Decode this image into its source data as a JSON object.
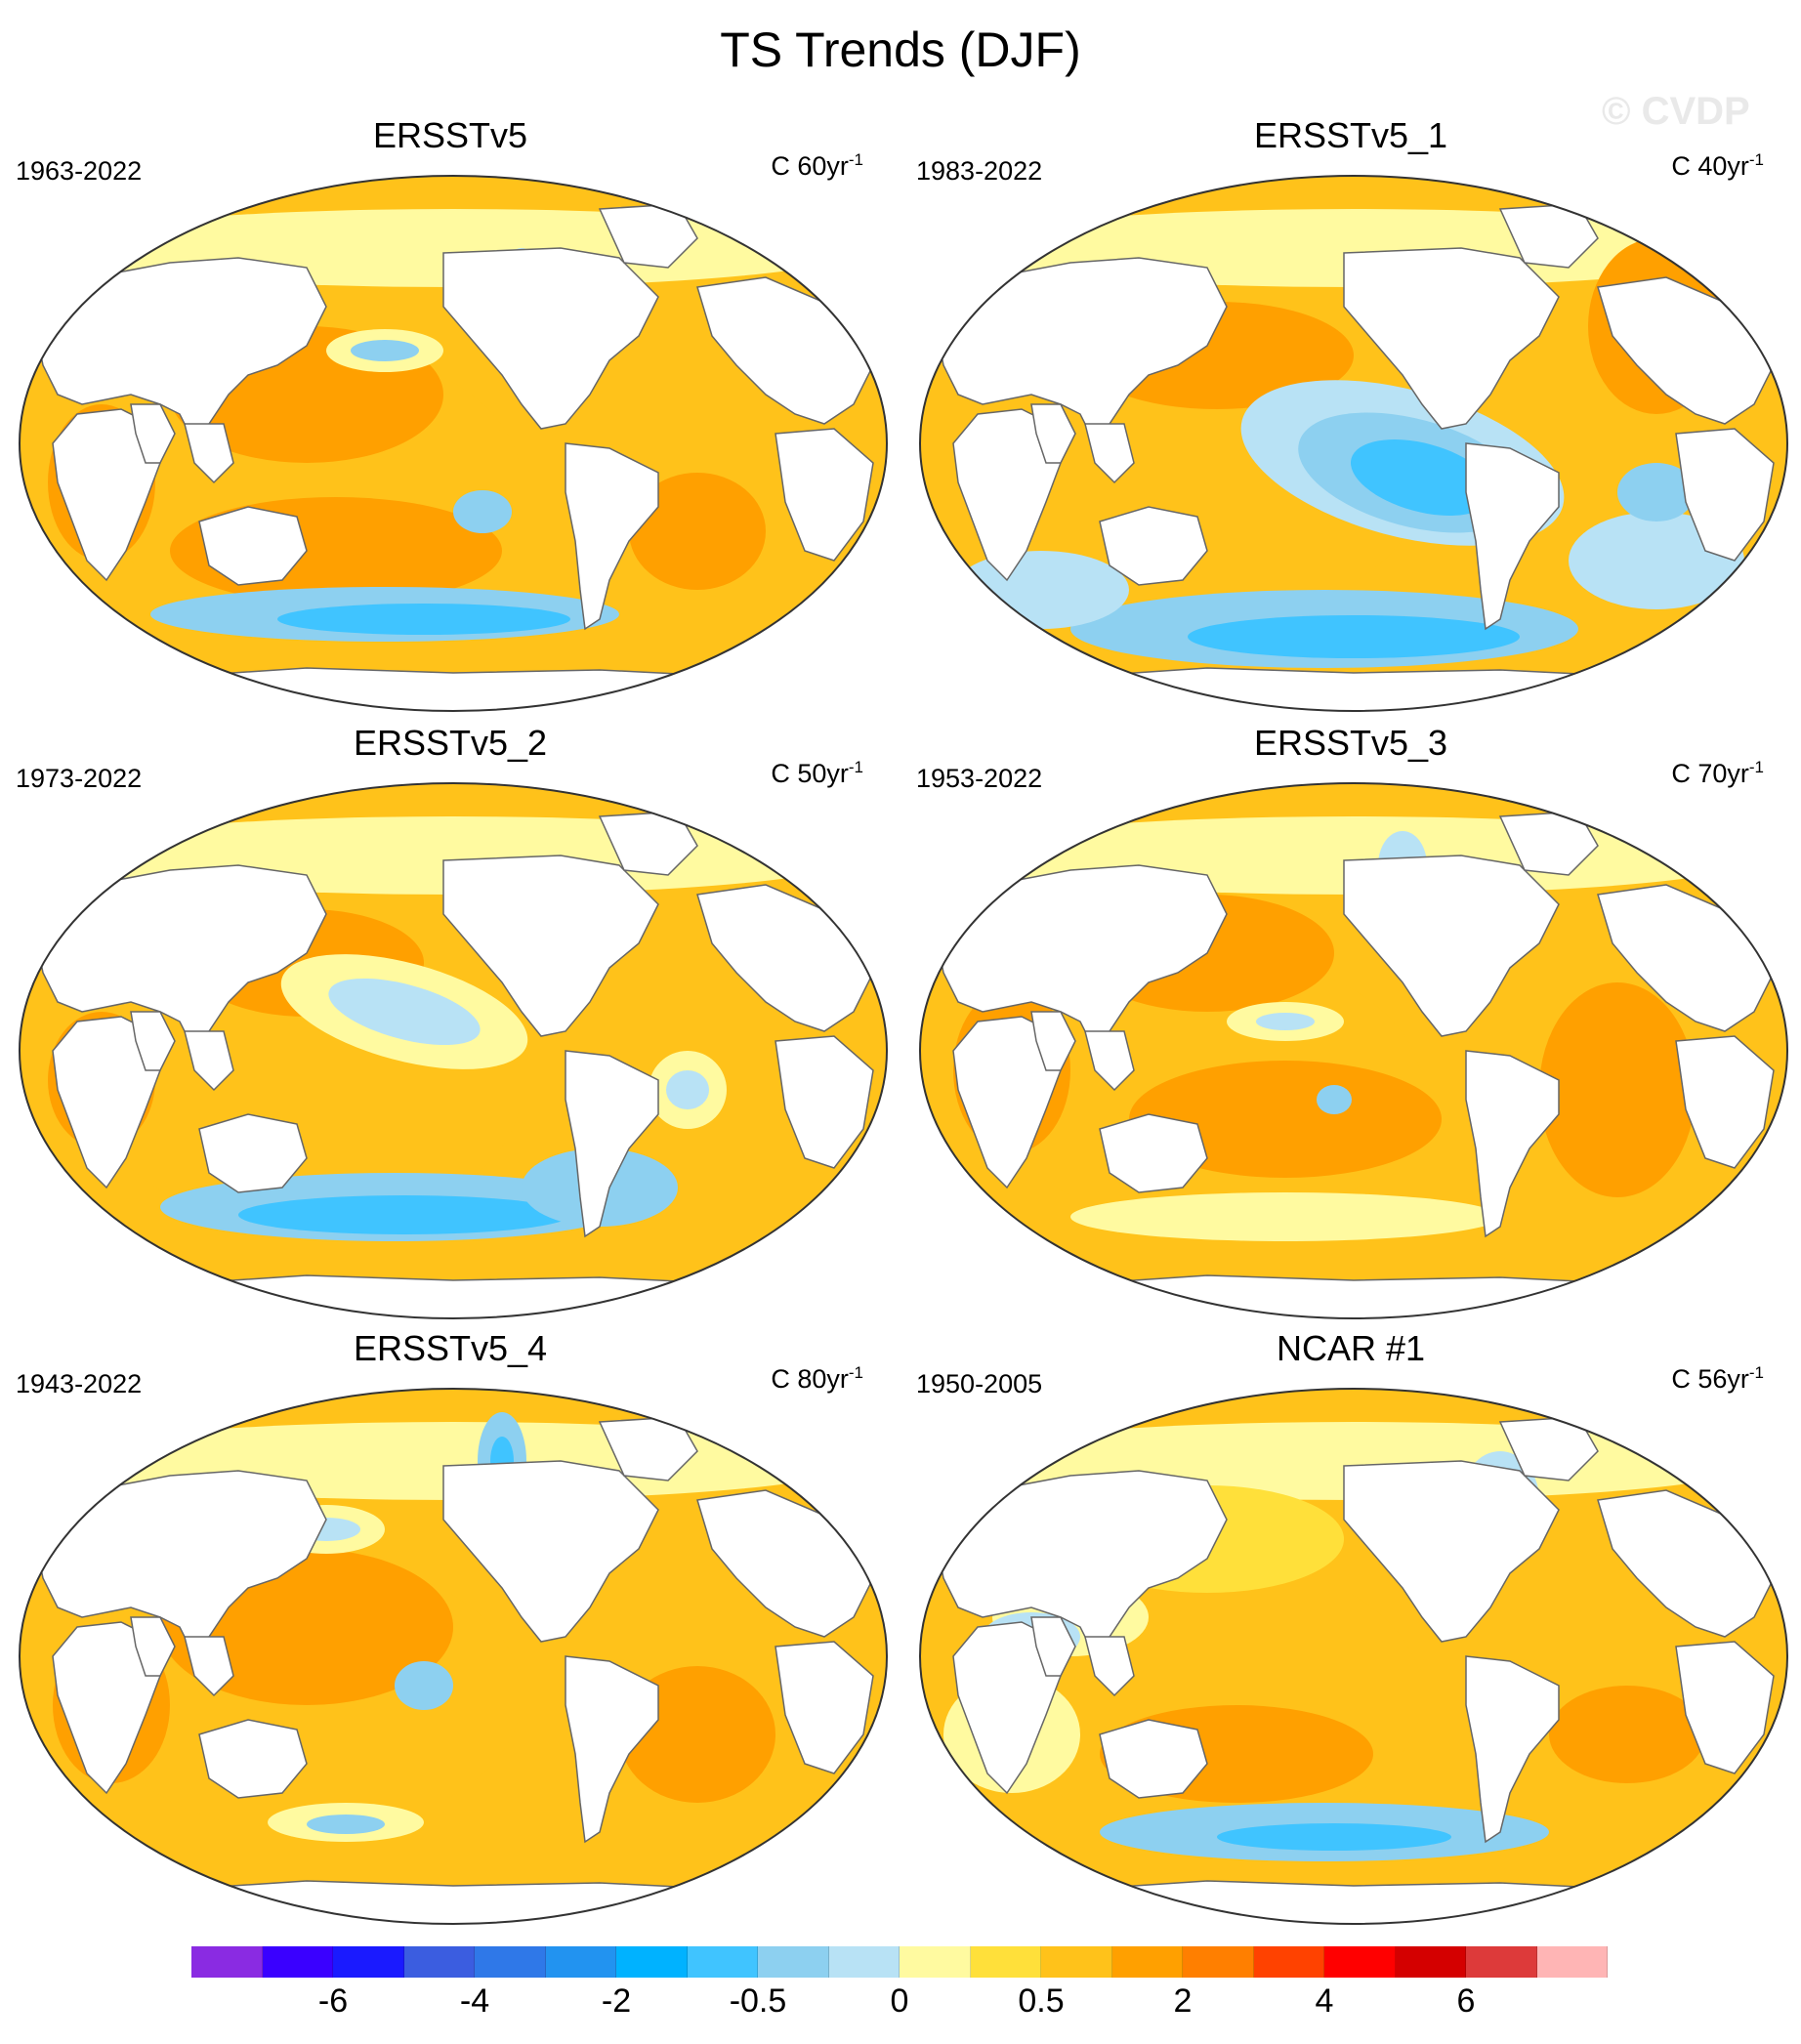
{
  "title": "TS Trends (DJF)",
  "watermark": "© CVDP",
  "panels": [
    {
      "title": "ERSSTv5",
      "period": "1963-2022",
      "units": "C 60yr",
      "units_exp": "-1",
      "pattern": "a"
    },
    {
      "title": "ERSSTv5_1",
      "period": "1983-2022",
      "units": "C 40yr",
      "units_exp": "-1",
      "pattern": "b"
    },
    {
      "title": "ERSSTv5_2",
      "period": "1973-2022",
      "units": "C 50yr",
      "units_exp": "-1",
      "pattern": "c"
    },
    {
      "title": "ERSSTv5_3",
      "period": "1953-2022",
      "units": "C 70yr",
      "units_exp": "-1",
      "pattern": "d"
    },
    {
      "title": "ERSSTv5_4",
      "period": "1943-2022",
      "units": "C 80yr",
      "units_exp": "-1",
      "pattern": "e"
    },
    {
      "title": "NCAR #1",
      "period": "1950-2005",
      "units": "C 56yr",
      "units_exp": "-1",
      "pattern": "f"
    }
  ],
  "colorbar": {
    "colors": [
      "#8a2be2",
      "#3a00ff",
      "#1a1aff",
      "#3b5de0",
      "#2f78e8",
      "#2293f0",
      "#00b2ff",
      "#40c4ff",
      "#8dd0f0",
      "#b8e2f5",
      "#fffaa0",
      "#ffe03a",
      "#ffc21a",
      "#ffa000",
      "#ff7f00",
      "#ff4200",
      "#ff0000",
      "#d40000",
      "#dd3a3a",
      "#ffb5b5"
    ],
    "labels": [
      "-6",
      "-4",
      "-2",
      "-0.5",
      "0",
      "0.5",
      "2",
      "4",
      "6"
    ],
    "label_boundaries": [
      2,
      4,
      6,
      8,
      10,
      12,
      14,
      16,
      18
    ]
  },
  "legend_colors": {
    "ocean_warm": "#ffc21a",
    "ocean_mid": "#ffe03a",
    "ocean_cool": "#fffaa0",
    "strong_warm": "#ffa000",
    "cool_light": "#b8e2f5",
    "cool": "#8dd0f0",
    "cold": "#40c4ff",
    "land": "#ffffff",
    "coast": "#666666"
  }
}
